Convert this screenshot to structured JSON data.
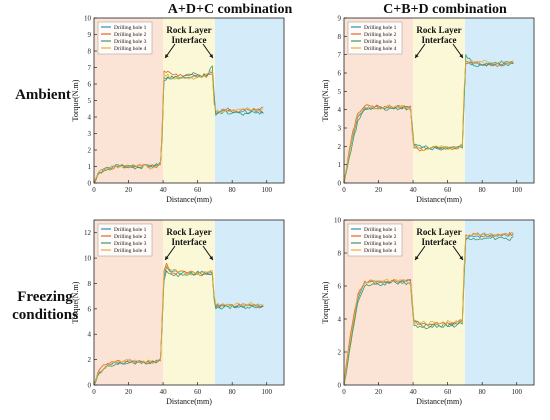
{
  "column_titles": [
    "A+D+C combination",
    "C+B+D combination"
  ],
  "row_labels": [
    "Ambient",
    "Freezing\nconditions"
  ],
  "colors": {
    "zone1": "#fbe3d6",
    "zone2": "#fbf8d8",
    "zone3": "#d4ecf9",
    "series": [
      "#2a8fbf",
      "#e0662a",
      "#3a9a6a",
      "#e6b02e"
    ]
  },
  "chart_data": [
    {
      "type": "line",
      "panel": "A+D+C Ambient",
      "xlabel": "Distance(mm)",
      "ylabel": "Torque(N.m)",
      "xlim": [
        0,
        110
      ],
      "ylim": [
        0,
        10
      ],
      "xticks": [
        0,
        20,
        40,
        60,
        80,
        100
      ],
      "yticks": [
        0,
        1,
        2,
        3,
        4,
        5,
        6,
        7,
        8,
        9,
        10
      ],
      "zones": [
        [
          0,
          40
        ],
        [
          40,
          70
        ],
        [
          70,
          110
        ]
      ],
      "annotation": "Rock Layer\nInterface",
      "legend": "top-left",
      "levels": [
        0.9,
        6.5,
        4.3
      ],
      "series": [
        {
          "name": "Drilling hole 1",
          "x": [
            0,
            3,
            8,
            15,
            25,
            35,
            38.5,
            39.5,
            40.5,
            45,
            55,
            65,
            68.5,
            69.5,
            70.5,
            75,
            85,
            95,
            98
          ],
          "y": [
            0.0,
            0.7,
            0.95,
            1.05,
            1.0,
            1.05,
            1.2,
            3.0,
            6.2,
            6.5,
            6.4,
            6.5,
            6.7,
            5.2,
            4.3,
            4.4,
            4.3,
            4.4,
            4.3
          ]
        },
        {
          "name": "Drilling hole 2",
          "x": [
            0,
            3,
            8,
            15,
            25,
            35,
            38.5,
            39.5,
            40.5,
            45,
            55,
            65,
            68.5,
            69.5,
            70.5,
            75,
            85,
            95,
            98
          ],
          "y": [
            0.0,
            0.6,
            0.9,
            1.0,
            1.05,
            1.0,
            1.1,
            3.5,
            6.8,
            6.6,
            6.5,
            6.4,
            6.6,
            5.0,
            4.2,
            4.5,
            4.4,
            4.5,
            4.6
          ]
        },
        {
          "name": "Drilling hole 3",
          "x": [
            0,
            3,
            8,
            15,
            25,
            35,
            38.5,
            39.5,
            40.5,
            45,
            55,
            65,
            68.5,
            69.5,
            70.5,
            75,
            85,
            95,
            98
          ],
          "y": [
            0.0,
            0.65,
            0.85,
            1.0,
            0.95,
            1.05,
            1.3,
            2.8,
            6.4,
            6.3,
            6.6,
            6.5,
            7.1,
            5.5,
            4.1,
            4.3,
            4.2,
            4.3,
            4.2
          ]
        },
        {
          "name": "Drilling hole 4",
          "x": [
            0,
            3,
            8,
            15,
            25,
            35,
            38.5,
            39.5,
            40.5,
            45,
            55,
            65,
            68.5,
            69.5,
            70.5,
            75,
            85,
            95,
            98
          ],
          "y": [
            0.0,
            0.7,
            0.9,
            1.05,
            1.0,
            0.95,
            1.15,
            3.2,
            6.6,
            6.4,
            6.3,
            6.6,
            6.8,
            4.8,
            4.4,
            4.3,
            4.5,
            4.4,
            4.5
          ]
        }
      ]
    },
    {
      "type": "line",
      "panel": "C+B+D Ambient",
      "xlabel": "Distance(mm)",
      "ylabel": "Torque(N.m)",
      "xlim": [
        0,
        110
      ],
      "ylim": [
        0,
        9
      ],
      "xticks": [
        0,
        20,
        40,
        60,
        80,
        100
      ],
      "yticks": [
        0,
        1,
        2,
        3,
        4,
        5,
        6,
        7,
        8,
        9
      ],
      "zones": [
        [
          0,
          40
        ],
        [
          40,
          70
        ],
        [
          70,
          110
        ]
      ],
      "annotation": "Rock Layer\nInterface",
      "legend": "top-left",
      "levels": [
        4.1,
        1.9,
        6.5
      ],
      "series": [
        {
          "name": "Drilling hole 1",
          "x": [
            0,
            2,
            5,
            8,
            12,
            20,
            30,
            38.5,
            39.5,
            40.5,
            45,
            55,
            65,
            68.5,
            69.5,
            70.5,
            75,
            85,
            95,
            98
          ],
          "y": [
            0.0,
            1.0,
            2.5,
            3.6,
            4.1,
            4.1,
            4.15,
            4.1,
            3.0,
            2.0,
            1.9,
            1.85,
            1.9,
            2.0,
            4.5,
            6.6,
            6.5,
            6.5,
            6.6,
            6.5
          ]
        },
        {
          "name": "Drilling hole 2",
          "x": [
            0,
            2,
            5,
            8,
            12,
            20,
            30,
            38.5,
            39.5,
            40.5,
            45,
            55,
            65,
            68.5,
            69.5,
            70.5,
            75,
            85,
            95,
            98
          ],
          "y": [
            0.0,
            1.2,
            2.8,
            3.8,
            4.2,
            4.2,
            4.1,
            4.2,
            2.8,
            1.9,
            1.8,
            1.9,
            1.85,
            2.1,
            4.8,
            6.5,
            6.6,
            6.4,
            6.5,
            6.6
          ]
        },
        {
          "name": "Drilling hole 3",
          "x": [
            0,
            2,
            5,
            8,
            12,
            20,
            30,
            38.5,
            39.5,
            40.5,
            45,
            55,
            65,
            68.5,
            69.5,
            70.5,
            75,
            85,
            95,
            98
          ],
          "y": [
            0.0,
            0.9,
            2.2,
            3.4,
            4.0,
            4.05,
            4.1,
            4.0,
            3.2,
            2.1,
            1.95,
            1.9,
            1.95,
            1.9,
            4.2,
            7.0,
            6.4,
            6.5,
            6.4,
            6.5
          ]
        },
        {
          "name": "Drilling hole 4",
          "x": [
            0,
            2,
            5,
            8,
            12,
            20,
            30,
            38.5,
            39.5,
            40.5,
            45,
            55,
            65,
            68.5,
            69.5,
            70.5,
            75,
            85,
            95,
            98
          ],
          "y": [
            0.0,
            1.1,
            2.6,
            3.7,
            4.15,
            4.1,
            4.2,
            4.1,
            2.9,
            1.95,
            1.85,
            1.95,
            1.9,
            2.05,
            5.0,
            6.7,
            6.6,
            6.6,
            6.5,
            6.7
          ]
        }
      ]
    },
    {
      "type": "line",
      "panel": "A+D+C Freezing conditions",
      "xlabel": "Distance(mm)",
      "ylabel": "Torque(N.m)",
      "xlim": [
        0,
        110
      ],
      "ylim": [
        0,
        13
      ],
      "xticks": [
        0,
        20,
        40,
        60,
        80,
        100
      ],
      "yticks": [
        0,
        2,
        4,
        6,
        8,
        10,
        12
      ],
      "zones": [
        [
          0,
          40
        ],
        [
          40,
          70
        ],
        [
          70,
          110
        ]
      ],
      "annotation": "Rock Layer\nInterface",
      "legend": "top-left",
      "levels": [
        1.8,
        8.8,
        6.2
      ],
      "series": [
        {
          "name": "Drilling hole 1",
          "x": [
            0,
            3,
            8,
            15,
            25,
            35,
            38.5,
            39.5,
            40.5,
            42,
            45,
            55,
            65,
            68.5,
            69.5,
            70.5,
            75,
            85,
            95,
            98
          ],
          "y": [
            0.0,
            1.0,
            1.6,
            1.8,
            1.85,
            1.8,
            2.0,
            5.0,
            8.5,
            9.3,
            8.9,
            8.8,
            8.9,
            8.8,
            7.0,
            6.2,
            6.3,
            6.2,
            6.3,
            6.2
          ]
        },
        {
          "name": "Drilling hole 2",
          "x": [
            0,
            3,
            8,
            15,
            25,
            35,
            38.5,
            39.5,
            40.5,
            42,
            45,
            55,
            65,
            68.5,
            69.5,
            70.5,
            75,
            85,
            95,
            98
          ],
          "y": [
            0.0,
            1.2,
            1.7,
            1.9,
            1.8,
            1.85,
            1.9,
            5.5,
            9.0,
            9.6,
            8.8,
            8.9,
            8.7,
            8.9,
            7.2,
            6.1,
            6.2,
            6.3,
            6.2,
            6.3
          ]
        },
        {
          "name": "Drilling hole 3",
          "x": [
            0,
            3,
            8,
            15,
            25,
            35,
            38.5,
            39.5,
            40.5,
            42,
            45,
            55,
            65,
            68.5,
            69.5,
            70.5,
            75,
            85,
            95,
            98
          ],
          "y": [
            0.0,
            0.9,
            1.5,
            1.75,
            1.8,
            1.75,
            2.1,
            4.8,
            8.2,
            9.0,
            8.7,
            8.7,
            8.8,
            8.7,
            6.8,
            6.0,
            6.1,
            6.2,
            6.1,
            6.2
          ]
        },
        {
          "name": "Drilling hole 4",
          "x": [
            0,
            3,
            8,
            15,
            25,
            35,
            38.5,
            39.5,
            40.5,
            42,
            45,
            55,
            65,
            68.5,
            69.5,
            70.5,
            75,
            85,
            95,
            98
          ],
          "y": [
            0.0,
            1.1,
            1.6,
            1.85,
            1.9,
            1.8,
            1.95,
            5.2,
            8.8,
            9.4,
            9.0,
            8.8,
            8.9,
            9.0,
            7.1,
            6.3,
            6.4,
            6.3,
            6.4,
            6.3
          ]
        }
      ]
    },
    {
      "type": "line",
      "panel": "C+B+D Freezing conditions",
      "xlabel": "Distance(mm)",
      "ylabel": "Torque(N.m)",
      "xlim": [
        0,
        110
      ],
      "ylim": [
        0,
        10
      ],
      "xticks": [
        0,
        20,
        40,
        60,
        80,
        100
      ],
      "yticks": [
        0,
        2,
        4,
        6,
        8,
        10
      ],
      "zones": [
        [
          0,
          40
        ],
        [
          40,
          70
        ],
        [
          70,
          110
        ]
      ],
      "annotation": "Rock Layer\nInterface",
      "legend": "top-left",
      "levels": [
        6.2,
        3.7,
        9.0
      ],
      "series": [
        {
          "name": "Drilling hole 1",
          "x": [
            0,
            2,
            5,
            8,
            12,
            20,
            30,
            38.5,
            39.5,
            40.5,
            45,
            55,
            65,
            68.5,
            69.5,
            70.5,
            75,
            85,
            95,
            98
          ],
          "y": [
            0.0,
            1.5,
            3.5,
            5.2,
            6.2,
            6.3,
            6.2,
            6.3,
            5.0,
            3.8,
            3.7,
            3.6,
            3.7,
            3.8,
            6.5,
            8.9,
            9.0,
            9.1,
            9.0,
            9.1
          ]
        },
        {
          "name": "Drilling hole 2",
          "x": [
            0,
            2,
            5,
            8,
            12,
            20,
            30,
            38.5,
            39.5,
            40.5,
            45,
            55,
            65,
            68.5,
            69.5,
            70.5,
            75,
            85,
            95,
            98
          ],
          "y": [
            0.0,
            1.8,
            3.8,
            5.5,
            6.3,
            6.2,
            6.3,
            6.4,
            5.2,
            3.9,
            3.6,
            3.7,
            3.8,
            3.9,
            7.0,
            9.1,
            9.2,
            9.0,
            9.1,
            9.2
          ]
        },
        {
          "name": "Drilling hole 3",
          "x": [
            0,
            2,
            5,
            8,
            12,
            20,
            30,
            38.5,
            39.5,
            40.5,
            45,
            55,
            65,
            68.5,
            69.5,
            70.5,
            75,
            85,
            95,
            98
          ],
          "y": [
            0.0,
            1.2,
            3.2,
            5.0,
            6.0,
            6.1,
            6.2,
            6.1,
            4.8,
            3.6,
            3.5,
            3.6,
            3.6,
            3.7,
            6.2,
            8.8,
            8.9,
            8.9,
            8.8,
            9.0
          ]
        },
        {
          "name": "Drilling hole 4",
          "x": [
            0,
            2,
            5,
            8,
            12,
            20,
            30,
            38.5,
            39.5,
            40.5,
            45,
            55,
            65,
            68.5,
            69.5,
            70.5,
            75,
            85,
            95,
            98
          ],
          "y": [
            0.0,
            1.6,
            3.6,
            5.4,
            6.2,
            6.3,
            6.4,
            6.2,
            5.1,
            3.7,
            3.8,
            3.7,
            3.9,
            3.8,
            6.8,
            9.0,
            9.1,
            9.2,
            9.1,
            9.2
          ]
        }
      ]
    }
  ]
}
